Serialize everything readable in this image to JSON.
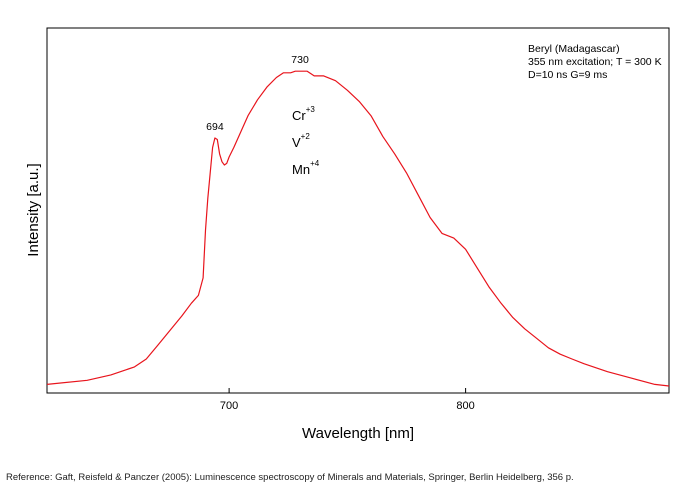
{
  "chart_data": {
    "type": "line",
    "xlabel": "Wavelength [nm]",
    "ylabel": "Intensity [a.u.]",
    "xlim": [
      623,
      886
    ],
    "ylim": [
      0,
      100
    ],
    "yticks_labeled": false,
    "grid": false,
    "line_color": "#e8141c",
    "xticks": [
      700,
      800
    ],
    "xtick_labels": [
      "700",
      "800"
    ],
    "series": [
      {
        "x": [
          623,
          640,
          650,
          660,
          665,
          670,
          675,
          680,
          684,
          687,
          689,
          690,
          691,
          692,
          693,
          694,
          695,
          696,
          697,
          698,
          699,
          700,
          702,
          705,
          708,
          712,
          716,
          720,
          723,
          726,
          728,
          730,
          733,
          736,
          738,
          740,
          745,
          750,
          755,
          760,
          765,
          770,
          775,
          780,
          785,
          790,
          795,
          800,
          805,
          810,
          815,
          820,
          825,
          830,
          835,
          840,
          845,
          850,
          860,
          870,
          880,
          886
        ],
        "values": [
          0.5,
          1.8,
          3.5,
          6,
          8.5,
          13,
          17.5,
          22,
          26,
          28.5,
          34,
          49,
          59,
          67,
          75,
          78,
          77.5,
          73,
          70.5,
          69.5,
          70,
          72,
          75,
          80,
          85,
          90,
          94,
          97,
          98.5,
          98.5,
          99,
          99,
          99,
          97.5,
          97.5,
          97.5,
          96,
          93,
          89.5,
          85,
          78.5,
          73,
          67,
          60,
          53,
          48,
          46.5,
          43,
          37,
          31,
          26,
          21.5,
          18,
          15,
          12,
          10,
          8.5,
          7,
          4.5,
          2.5,
          0.5,
          0
        ]
      }
    ],
    "annotations": [
      {
        "text": "694",
        "x": 694,
        "y": 78
      },
      {
        "text": "730",
        "x": 730,
        "y": 99
      }
    ],
    "ions": [
      {
        "symbol": "Cr",
        "charge": "+3"
      },
      {
        "symbol": "V",
        "charge": "+2"
      },
      {
        "symbol": "Mn",
        "charge": "+4"
      }
    ],
    "info_lines": [
      "Beryl (Madagascar)",
      "355 nm excitation; T = 300 K",
      "D=10 ns G=9 ms"
    ]
  },
  "reference": "Reference: Gaft, Reisfeld & Panczer (2005): Luminescence spectroscopy of Minerals and Materials, Springer, Berlin Heidelberg, 356 p."
}
